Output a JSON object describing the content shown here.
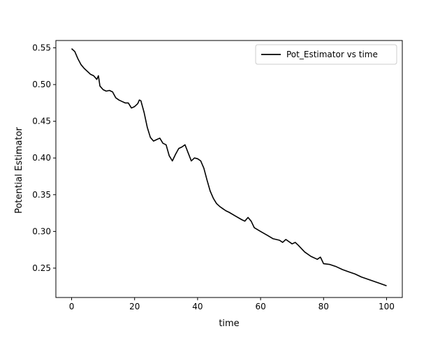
{
  "chart_data": {
    "type": "line",
    "title": "",
    "xlabel": "time",
    "ylabel": "Potential Estimator",
    "xlim": [
      -5,
      105
    ],
    "ylim": [
      0.21,
      0.56
    ],
    "xticks": [
      0,
      20,
      40,
      60,
      80,
      100
    ],
    "yticks": [
      0.25,
      0.3,
      0.35,
      0.4,
      0.45,
      0.5,
      0.55
    ],
    "xtick_labels": [
      "0",
      "20",
      "40",
      "60",
      "80",
      "100"
    ],
    "ytick_labels": [
      "0.25",
      "0.30",
      "0.35",
      "0.40",
      "0.45",
      "0.50",
      "0.55"
    ],
    "grid": false,
    "legend_position": "top-right",
    "series": [
      {
        "name": "Pot_Estimator vs time",
        "color": "#000000",
        "x": [
          0,
          1,
          2,
          3,
          4,
          5,
          6,
          7,
          8,
          8.5,
          9,
          10,
          11,
          12,
          13,
          14,
          15,
          16,
          17,
          18,
          19,
          20,
          21,
          21.5,
          22,
          23,
          24,
          25,
          26,
          27,
          28,
          29,
          30,
          31,
          32,
          33,
          34,
          35,
          36,
          37,
          38,
          39,
          40,
          41,
          42,
          43,
          44,
          45,
          46,
          47,
          48,
          49,
          50,
          52,
          54,
          55,
          56,
          57,
          58,
          60,
          62,
          64,
          66,
          67,
          68,
          70,
          71,
          72,
          74,
          76,
          78,
          79,
          80,
          82,
          84,
          86,
          88,
          90,
          92,
          94,
          96,
          98,
          100
        ],
        "y": [
          0.549,
          0.545,
          0.535,
          0.527,
          0.522,
          0.518,
          0.514,
          0.512,
          0.507,
          0.512,
          0.498,
          0.493,
          0.491,
          0.492,
          0.49,
          0.482,
          0.479,
          0.477,
          0.475,
          0.475,
          0.468,
          0.47,
          0.474,
          0.479,
          0.478,
          0.462,
          0.442,
          0.428,
          0.423,
          0.425,
          0.427,
          0.42,
          0.418,
          0.403,
          0.396,
          0.405,
          0.413,
          0.415,
          0.418,
          0.407,
          0.396,
          0.4,
          0.399,
          0.396,
          0.386,
          0.37,
          0.355,
          0.345,
          0.338,
          0.334,
          0.331,
          0.328,
          0.326,
          0.321,
          0.316,
          0.314,
          0.319,
          0.314,
          0.305,
          0.3,
          0.295,
          0.29,
          0.288,
          0.285,
          0.289,
          0.283,
          0.285,
          0.281,
          0.272,
          0.266,
          0.262,
          0.265,
          0.256,
          0.255,
          0.252,
          0.248,
          0.245,
          0.242,
          0.238,
          0.235,
          0.232,
          0.229,
          0.226
        ]
      }
    ]
  }
}
